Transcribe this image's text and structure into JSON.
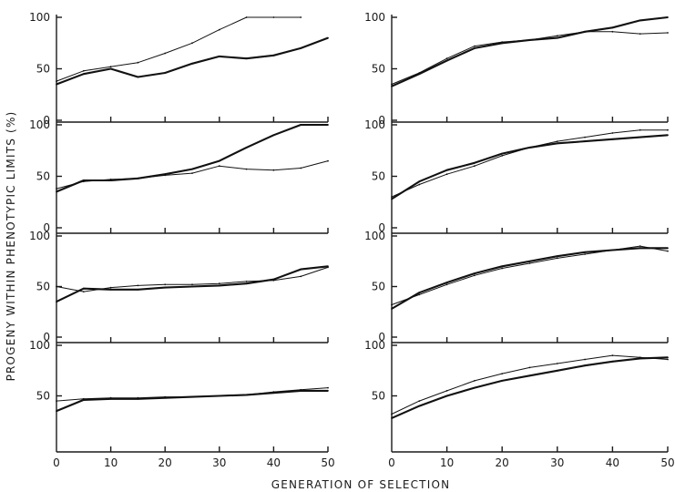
{
  "figure": {
    "ylabel": "PROGENY WITHIN PHENOTYPIC LIMITS (%)",
    "xlabel": "GENERATION OF SELECTION"
  },
  "chart_data": [
    {
      "type": "line",
      "panel": "left-1",
      "xlim": [
        0,
        50
      ],
      "ylim": [
        0,
        100
      ],
      "x": [
        0,
        5,
        10,
        15,
        20,
        25,
        30,
        35,
        40,
        45,
        50
      ],
      "yticks": [
        "100",
        "50",
        "0"
      ],
      "series": [
        {
          "style": "thick",
          "values": [
            35,
            45,
            50,
            42,
            46,
            55,
            62,
            60,
            63,
            70,
            80
          ]
        },
        {
          "style": "thin",
          "values": [
            38,
            48,
            52,
            56,
            65,
            75,
            88,
            100,
            100,
            100,
            null
          ]
        }
      ]
    },
    {
      "type": "line",
      "panel": "left-2",
      "xlim": [
        0,
        50
      ],
      "ylim": [
        0,
        100
      ],
      "x": [
        0,
        5,
        10,
        15,
        20,
        25,
        30,
        35,
        40,
        45,
        50
      ],
      "yticks": [
        "100",
        "50",
        "0"
      ],
      "series": [
        {
          "style": "thick",
          "values": [
            35,
            46,
            46,
            48,
            52,
            57,
            65,
            78,
            90,
            100,
            100
          ]
        },
        {
          "style": "thin",
          "values": [
            38,
            45,
            47,
            48,
            51,
            53,
            60,
            57,
            56,
            58,
            65
          ]
        }
      ]
    },
    {
      "type": "line",
      "panel": "left-3",
      "xlim": [
        0,
        50
      ],
      "ylim": [
        0,
        100
      ],
      "x": [
        0,
        5,
        10,
        15,
        20,
        25,
        30,
        35,
        40,
        45,
        50
      ],
      "yticks": [
        "100",
        "50",
        "0"
      ],
      "series": [
        {
          "style": "thick",
          "values": [
            35,
            48,
            47,
            47,
            49,
            50,
            51,
            53,
            57,
            67,
            70
          ]
        },
        {
          "style": "thin",
          "values": [
            50,
            45,
            49,
            51,
            52,
            52,
            53,
            55,
            56,
            60,
            69
          ]
        }
      ]
    },
    {
      "type": "line",
      "panel": "left-4",
      "xlim": [
        0,
        50
      ],
      "ylim": [
        0,
        100
      ],
      "x": [
        0,
        5,
        10,
        15,
        20,
        25,
        30,
        35,
        40,
        45,
        50
      ],
      "xticks": [
        "0",
        "10",
        "20",
        "30",
        "40",
        "50"
      ],
      "yticks": [
        "100",
        "50"
      ],
      "series": [
        {
          "style": "thick",
          "values": [
            35,
            46,
            47,
            47,
            48,
            49,
            50,
            51,
            53,
            55,
            55
          ]
        },
        {
          "style": "thin",
          "values": [
            45,
            47,
            48,
            48,
            49,
            49,
            50,
            51,
            54,
            56,
            58
          ]
        }
      ]
    },
    {
      "type": "line",
      "panel": "right-1",
      "xlim": [
        0,
        50
      ],
      "ylim": [
        0,
        100
      ],
      "x": [
        0,
        5,
        10,
        15,
        20,
        25,
        30,
        35,
        40,
        45,
        50
      ],
      "yticks": [
        "100",
        "50",
        "0"
      ],
      "series": [
        {
          "style": "thick",
          "values": [
            33,
            45,
            58,
            70,
            75,
            78,
            80,
            86,
            90,
            97,
            100
          ]
        },
        {
          "style": "thin",
          "values": [
            35,
            46,
            60,
            72,
            76,
            78,
            82,
            86,
            86,
            84,
            85
          ]
        }
      ]
    },
    {
      "type": "line",
      "panel": "right-2",
      "xlim": [
        0,
        50
      ],
      "ylim": [
        0,
        100
      ],
      "x": [
        0,
        5,
        10,
        15,
        20,
        25,
        30,
        35,
        40,
        45,
        50
      ],
      "yticks": [
        "100",
        "50",
        "0"
      ],
      "series": [
        {
          "style": "thick",
          "values": [
            28,
            45,
            56,
            63,
            72,
            78,
            82,
            84,
            86,
            88,
            90
          ]
        },
        {
          "style": "thin",
          "values": [
            30,
            42,
            52,
            60,
            70,
            78,
            84,
            88,
            92,
            95,
            95
          ]
        }
      ]
    },
    {
      "type": "line",
      "panel": "right-3",
      "xlim": [
        0,
        50
      ],
      "ylim": [
        0,
        100
      ],
      "x": [
        0,
        5,
        10,
        15,
        20,
        25,
        30,
        35,
        40,
        45,
        50
      ],
      "yticks": [
        "100",
        "50",
        "0"
      ],
      "series": [
        {
          "style": "thick",
          "values": [
            28,
            44,
            54,
            63,
            70,
            75,
            80,
            84,
            86,
            88,
            88
          ]
        },
        {
          "style": "thin",
          "values": [
            32,
            42,
            52,
            61,
            68,
            73,
            78,
            82,
            86,
            90,
            85
          ]
        }
      ]
    },
    {
      "type": "line",
      "panel": "right-4",
      "xlim": [
        0,
        50
      ],
      "ylim": [
        0,
        100
      ],
      "x": [
        0,
        5,
        10,
        15,
        20,
        25,
        30,
        35,
        40,
        45,
        50
      ],
      "xticks": [
        "0",
        "10",
        "20",
        "30",
        "40",
        "50"
      ],
      "yticks": [
        "100",
        "50"
      ],
      "series": [
        {
          "style": "thick",
          "values": [
            28,
            40,
            50,
            58,
            65,
            70,
            75,
            80,
            84,
            87,
            88
          ]
        },
        {
          "style": "thin",
          "values": [
            32,
            45,
            55,
            65,
            72,
            78,
            82,
            86,
            90,
            88,
            86
          ]
        }
      ]
    }
  ]
}
